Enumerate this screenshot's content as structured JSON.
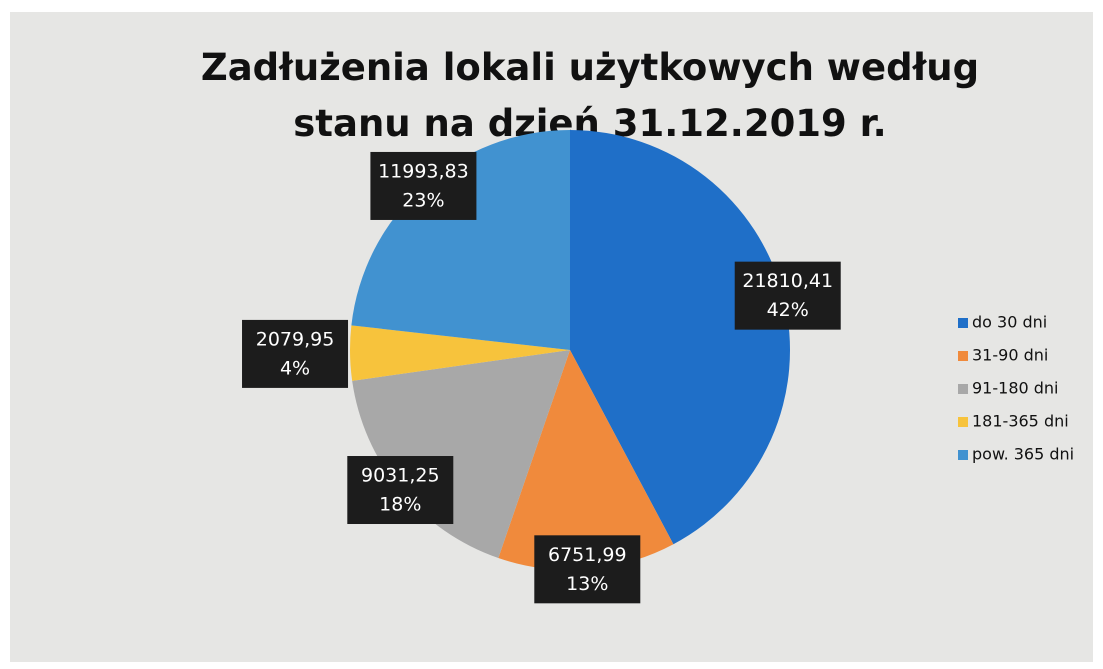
{
  "chart_data": {
    "type": "pie",
    "title": "Zadłużenia lokali użytkowych według stanu na dzień 31.12.2019 r.",
    "categories": [
      "do 30 dni",
      "31-90 dni",
      "91-180 dni",
      "181-365 dni",
      "pow. 365 dni"
    ],
    "values": [
      21810.41,
      6751.99,
      9031.25,
      2079.95,
      11993.83
    ],
    "value_labels": [
      "21810,41",
      "6751,99",
      "9031,25",
      "2079,95",
      "11993,83"
    ],
    "percent_labels": [
      "42%",
      "13%",
      "18%",
      "4%",
      "23%"
    ],
    "colors": [
      "#1f6fc8",
      "#f08a3c",
      "#a8a8a8",
      "#f7c33c",
      "#4192d0"
    ],
    "legend": "right"
  }
}
